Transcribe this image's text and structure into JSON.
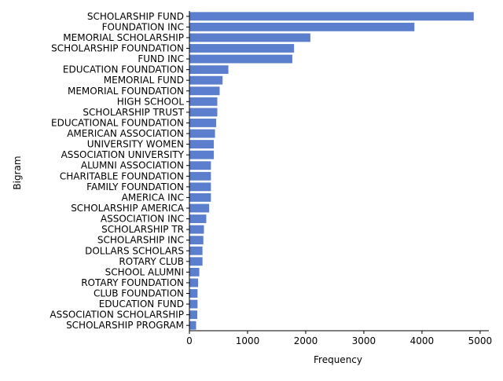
{
  "chart_data": {
    "type": "bar",
    "orientation": "horizontal",
    "xlabel": "Frequency",
    "ylabel": "Bigram",
    "xlim": [
      0,
      5150
    ],
    "x_ticks": [
      0,
      1000,
      2000,
      3000,
      4000,
      5000
    ],
    "grid": false,
    "bar_color": "#5b7fcc",
    "categories": [
      "SCHOLARSHIP FUND",
      "FOUNDATION INC",
      "MEMORIAL SCHOLARSHIP",
      "SCHOLARSHIP FOUNDATION",
      "FUND INC",
      "EDUCATION FOUNDATION",
      "MEMORIAL FUND",
      "MEMORIAL FOUNDATION",
      "HIGH SCHOOL",
      "SCHOLARSHIP TRUST",
      "EDUCATIONAL FOUNDATION",
      "AMERICAN ASSOCIATION",
      "UNIVERSITY WOMEN",
      "ASSOCIATION UNIVERSITY",
      "ALUMNI ASSOCIATION",
      "CHARITABLE FOUNDATION",
      "FAMILY FOUNDATION",
      "AMERICA INC",
      "SCHOLARSHIP AMERICA",
      "ASSOCIATION INC",
      "SCHOLARSHIP TR",
      "SCHOLARSHIP INC",
      "DOLLARS SCHOLARS",
      "ROTARY CLUB",
      "SCHOOL ALUMNI",
      "ROTARY FOUNDATION",
      "CLUB FOUNDATION",
      "EDUCATION FUND",
      "ASSOCIATION SCHOLARSHIP",
      "SCHOLARSHIP PROGRAM"
    ],
    "values": [
      4890,
      3870,
      2080,
      1800,
      1770,
      670,
      570,
      520,
      480,
      480,
      460,
      440,
      420,
      420,
      370,
      370,
      370,
      370,
      340,
      290,
      250,
      240,
      225,
      225,
      170,
      150,
      140,
      140,
      135,
      115
    ]
  }
}
